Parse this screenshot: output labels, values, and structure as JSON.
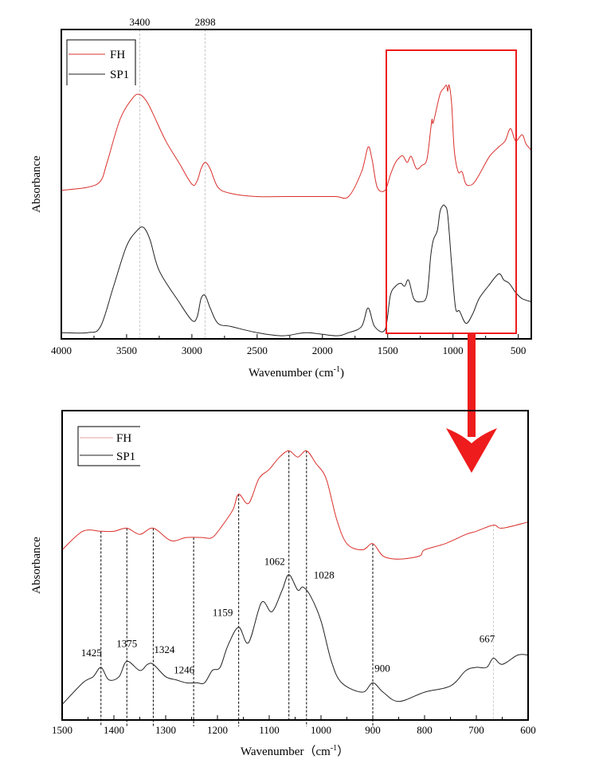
{
  "colors": {
    "fh": "#d9302c",
    "sp1": "#222222",
    "highlight": "#ee1c1c"
  },
  "chart_data": [
    {
      "type": "line",
      "title": "",
      "xlabel": "Wavenumber (cm",
      "xlabel_sup": "-1",
      "xlabel_end": ")",
      "ylabel": "Absorbance",
      "xlim": [
        4000,
        400
      ],
      "ylim": [
        0,
        1
      ],
      "xticks": [
        4000,
        3500,
        3000,
        2500,
        2000,
        1500,
        1000,
        500
      ],
      "xtick_labels": [
        "4000",
        "3500",
        "3000",
        "2500",
        "2000",
        "1500",
        "1000",
        "500"
      ],
      "legend": {
        "position": "top-left",
        "entries": [
          "FH",
          "SP1"
        ]
      },
      "annotations": [
        {
          "x": 3400,
          "label": "3400"
        },
        {
          "x": 2898,
          "label": "2898"
        }
      ],
      "highlight_region": {
        "x": [
          1500,
          505
        ]
      },
      "series": [
        {
          "name": "FH",
          "x": [
            4000,
            3800,
            3700,
            3650,
            3550,
            3450,
            3400,
            3350,
            3300,
            3200,
            3100,
            3000,
            2960,
            2930,
            2898,
            2860,
            2800,
            2700,
            2500,
            2300,
            2100,
            1900,
            1800,
            1700,
            1650,
            1620,
            1580,
            1520,
            1480,
            1440,
            1400,
            1380,
            1350,
            1320,
            1280,
            1240,
            1200,
            1170,
            1160,
            1150,
            1100,
            1070,
            1050,
            1040,
            1030,
            1010,
            990,
            960,
            930,
            900,
            850,
            800,
            720,
            650,
            600,
            560,
            520,
            470,
            440,
            400
          ],
          "y": [
            0.48,
            0.49,
            0.51,
            0.57,
            0.71,
            0.78,
            0.79,
            0.77,
            0.73,
            0.64,
            0.57,
            0.5,
            0.51,
            0.55,
            0.57,
            0.55,
            0.49,
            0.47,
            0.46,
            0.46,
            0.46,
            0.46,
            0.46,
            0.54,
            0.62,
            0.58,
            0.49,
            0.48,
            0.53,
            0.57,
            0.59,
            0.59,
            0.57,
            0.59,
            0.55,
            0.56,
            0.58,
            0.68,
            0.71,
            0.7,
            0.79,
            0.81,
            0.82,
            0.8,
            0.82,
            0.76,
            0.61,
            0.54,
            0.54,
            0.5,
            0.5,
            0.53,
            0.59,
            0.62,
            0.64,
            0.68,
            0.64,
            0.66,
            0.63,
            0.61
          ]
        },
        {
          "name": "SP1",
          "x": [
            4000,
            3800,
            3700,
            3600,
            3500,
            3420,
            3370,
            3320,
            3250,
            3100,
            3000,
            2960,
            2930,
            2898,
            2860,
            2800,
            2700,
            2500,
            2300,
            2120,
            1900,
            1800,
            1700,
            1650,
            1600,
            1520,
            1480,
            1440,
            1400,
            1370,
            1340,
            1300,
            1250,
            1200,
            1170,
            1150,
            1120,
            1100,
            1080,
            1062,
            1040,
            1010,
            980,
            950,
            900,
            850,
            800,
            730,
            650,
            610,
            570,
            520,
            470,
            400
          ],
          "y": [
            0.02,
            0.02,
            0.04,
            0.17,
            0.3,
            0.35,
            0.36,
            0.32,
            0.22,
            0.12,
            0.06,
            0.07,
            0.13,
            0.14,
            0.1,
            0.05,
            0.04,
            0.02,
            0.01,
            0.02,
            0.01,
            0.02,
            0.04,
            0.1,
            0.04,
            0.03,
            0.14,
            0.17,
            0.18,
            0.17,
            0.19,
            0.13,
            0.12,
            0.14,
            0.27,
            0.32,
            0.35,
            0.41,
            0.43,
            0.43,
            0.4,
            0.24,
            0.1,
            0.09,
            0.05,
            0.08,
            0.13,
            0.17,
            0.21,
            0.19,
            0.18,
            0.15,
            0.13,
            0.12
          ]
        }
      ]
    },
    {
      "type": "line",
      "title": "",
      "xlabel": "Wavenumber（cm",
      "xlabel_sup": "-1",
      "xlabel_end": "）",
      "ylabel": "Absorbance",
      "xlim": [
        1500,
        600
      ],
      "ylim": [
        0,
        1
      ],
      "xticks": [
        1500,
        1400,
        1300,
        1200,
        1100,
        1000,
        900,
        800,
        700,
        600
      ],
      "xtick_labels": [
        "1500",
        "1400",
        "1300",
        "1200",
        "1100",
        "1000",
        "900",
        "800",
        "700",
        "600"
      ],
      "legend": {
        "position": "top-left",
        "entries": [
          "FH",
          "SP1"
        ]
      },
      "annotations": [
        {
          "x": 1425,
          "label": "1425"
        },
        {
          "x": 1375,
          "label": "1375"
        },
        {
          "x": 1324,
          "label": "1324"
        },
        {
          "x": 1246,
          "label": "1246"
        },
        {
          "x": 1159,
          "label": "1159"
        },
        {
          "x": 1062,
          "label": "1062"
        },
        {
          "x": 1028,
          "label": "1028"
        },
        {
          "x": 900,
          "label": "900"
        },
        {
          "x": 667,
          "label": "667"
        }
      ],
      "series": [
        {
          "name": "FH",
          "x": [
            1500,
            1460,
            1425,
            1400,
            1375,
            1350,
            1324,
            1290,
            1260,
            1230,
            1210,
            1190,
            1170,
            1159,
            1140,
            1120,
            1100,
            1080,
            1062,
            1045,
            1028,
            1010,
            990,
            970,
            950,
            920,
            900,
            880,
            850,
            810,
            800,
            760,
            720,
            700,
            667,
            650,
            600
          ],
          "y": [
            0.55,
            0.61,
            0.61,
            0.61,
            0.62,
            0.6,
            0.62,
            0.58,
            0.59,
            0.59,
            0.59,
            0.63,
            0.68,
            0.73,
            0.7,
            0.78,
            0.81,
            0.85,
            0.87,
            0.85,
            0.87,
            0.83,
            0.78,
            0.65,
            0.57,
            0.55,
            0.57,
            0.53,
            0.52,
            0.53,
            0.55,
            0.57,
            0.6,
            0.61,
            0.63,
            0.62,
            0.64
          ]
        },
        {
          "name": "SP1",
          "x": [
            1500,
            1460,
            1440,
            1425,
            1410,
            1390,
            1375,
            1350,
            1335,
            1324,
            1300,
            1280,
            1260,
            1240,
            1225,
            1210,
            1195,
            1180,
            1159,
            1140,
            1115,
            1095,
            1075,
            1062,
            1045,
            1035,
            1020,
            1000,
            980,
            960,
            920,
            900,
            880,
            850,
            800,
            750,
            720,
            700,
            680,
            667,
            650,
            620,
            600
          ],
          "y": [
            0.05,
            0.12,
            0.14,
            0.17,
            0.13,
            0.14,
            0.19,
            0.16,
            0.18,
            0.18,
            0.14,
            0.13,
            0.12,
            0.12,
            0.12,
            0.16,
            0.17,
            0.24,
            0.3,
            0.25,
            0.38,
            0.35,
            0.42,
            0.47,
            0.42,
            0.43,
            0.4,
            0.32,
            0.19,
            0.12,
            0.09,
            0.12,
            0.09,
            0.06,
            0.09,
            0.11,
            0.16,
            0.17,
            0.17,
            0.2,
            0.18,
            0.21,
            0.21
          ]
        }
      ]
    }
  ]
}
